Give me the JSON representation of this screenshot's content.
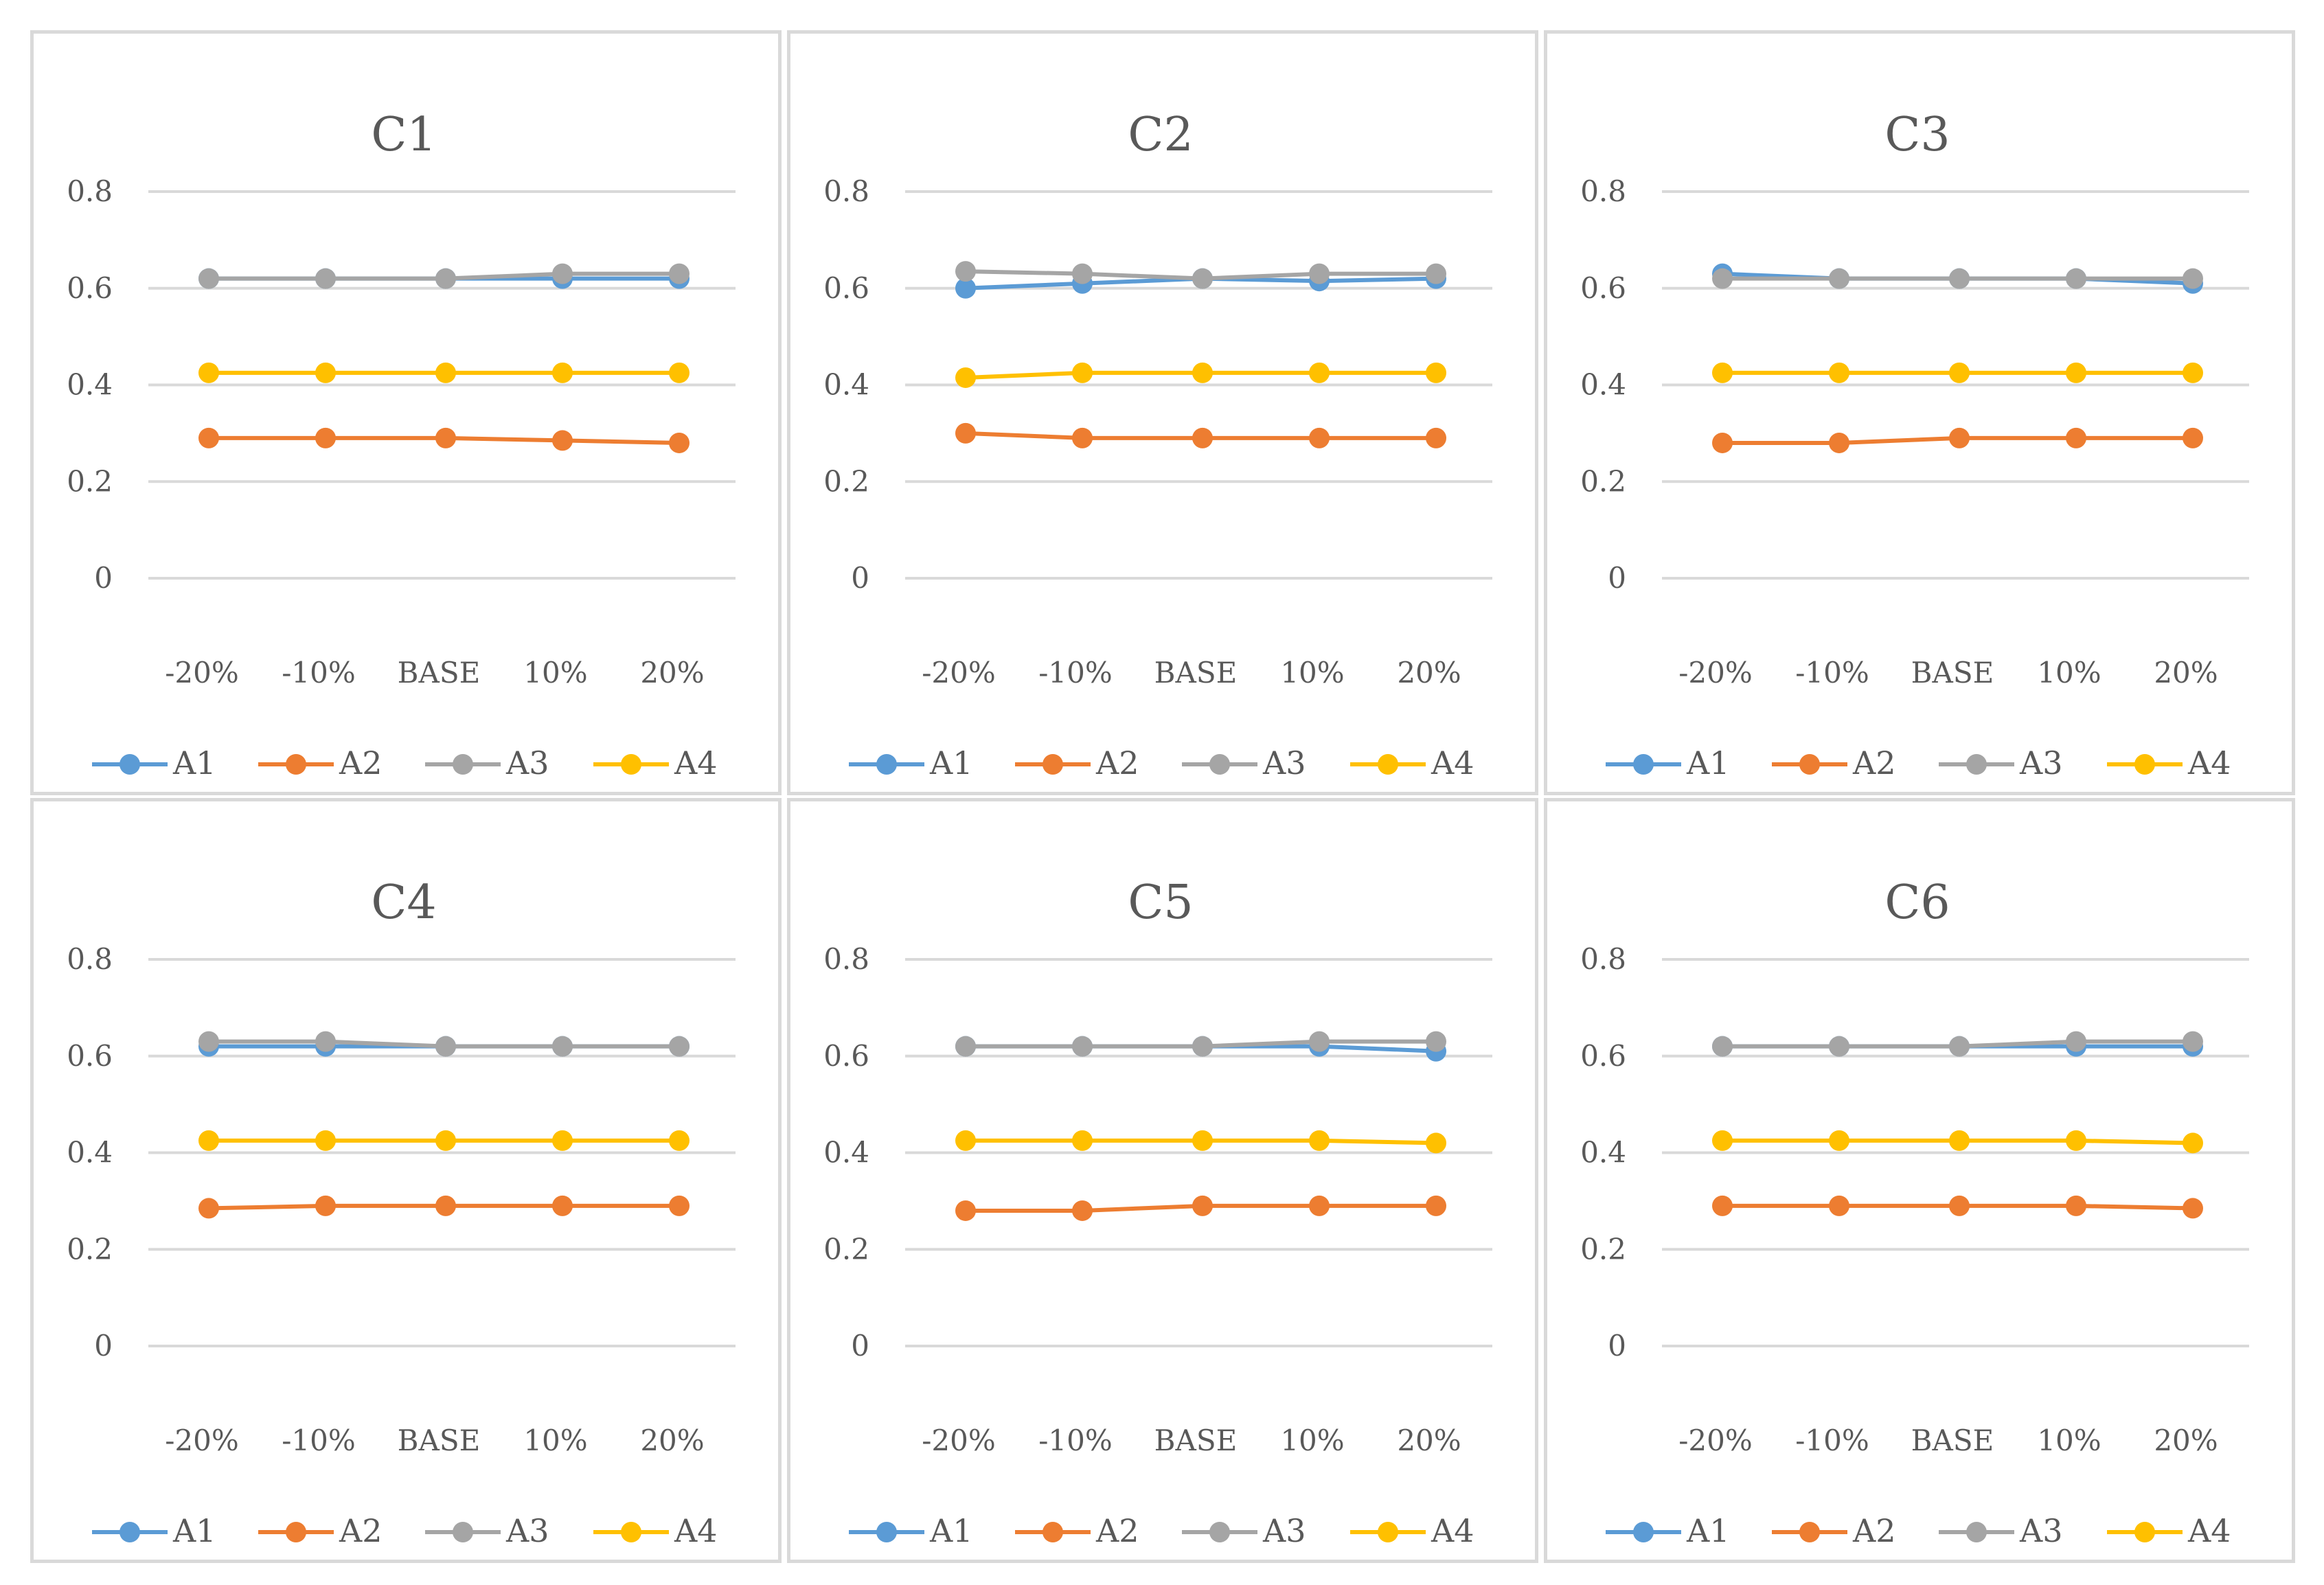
{
  "colors": {
    "A1": "#5b9bd5",
    "A2": "#ed7d31",
    "A3": "#a5a5a5",
    "A4": "#ffc000"
  },
  "chart_data": [
    {
      "type": "line",
      "title": "C1",
      "categories": [
        "-20%",
        "-10%",
        "BASE",
        "10%",
        "20%"
      ],
      "ylim": [
        0,
        0.8
      ],
      "yticks": [
        "0",
        "0.2",
        "0.4",
        "0.6",
        "0.8"
      ],
      "legend_position": "bottom",
      "series": [
        {
          "name": "A1",
          "values": [
            0.62,
            0.62,
            0.62,
            0.62,
            0.62
          ]
        },
        {
          "name": "A2",
          "values": [
            0.29,
            0.29,
            0.29,
            0.285,
            0.28
          ]
        },
        {
          "name": "A3",
          "values": [
            0.62,
            0.62,
            0.62,
            0.63,
            0.63
          ]
        },
        {
          "name": "A4",
          "values": [
            0.425,
            0.425,
            0.425,
            0.425,
            0.425
          ]
        }
      ]
    },
    {
      "type": "line",
      "title": "C2",
      "categories": [
        "-20%",
        "-10%",
        "BASE",
        "10%",
        "20%"
      ],
      "ylim": [
        0,
        0.8
      ],
      "yticks": [
        "0",
        "0.2",
        "0.4",
        "0.6",
        "0.8"
      ],
      "legend_position": "bottom",
      "series": [
        {
          "name": "A1",
          "values": [
            0.6,
            0.61,
            0.62,
            0.615,
            0.62
          ]
        },
        {
          "name": "A2",
          "values": [
            0.3,
            0.29,
            0.29,
            0.29,
            0.29
          ]
        },
        {
          "name": "A3",
          "values": [
            0.635,
            0.63,
            0.62,
            0.63,
            0.63
          ]
        },
        {
          "name": "A4",
          "values": [
            0.415,
            0.425,
            0.425,
            0.425,
            0.425
          ]
        }
      ]
    },
    {
      "type": "line",
      "title": "C3",
      "categories": [
        "-20%",
        "-10%",
        "BASE",
        "10%",
        "20%"
      ],
      "ylim": [
        0,
        0.8
      ],
      "yticks": [
        "0",
        "0.2",
        "0.4",
        "0.6",
        "0.8"
      ],
      "legend_position": "bottom",
      "series": [
        {
          "name": "A1",
          "values": [
            0.63,
            0.62,
            0.62,
            0.62,
            0.61
          ]
        },
        {
          "name": "A2",
          "values": [
            0.28,
            0.28,
            0.29,
            0.29,
            0.29
          ]
        },
        {
          "name": "A3",
          "values": [
            0.62,
            0.62,
            0.62,
            0.62,
            0.62
          ]
        },
        {
          "name": "A4",
          "values": [
            0.425,
            0.425,
            0.425,
            0.425,
            0.425
          ]
        }
      ]
    },
    {
      "type": "line",
      "title": "C4",
      "categories": [
        "-20%",
        "-10%",
        "BASE",
        "10%",
        "20%"
      ],
      "ylim": [
        0,
        0.8
      ],
      "yticks": [
        "0",
        "0.2",
        "0.4",
        "0.6",
        "0.8"
      ],
      "legend_position": "bottom",
      "series": [
        {
          "name": "A1",
          "values": [
            0.62,
            0.62,
            0.62,
            0.62,
            0.62
          ]
        },
        {
          "name": "A2",
          "values": [
            0.285,
            0.29,
            0.29,
            0.29,
            0.29
          ]
        },
        {
          "name": "A3",
          "values": [
            0.63,
            0.63,
            0.62,
            0.62,
            0.62
          ]
        },
        {
          "name": "A4",
          "values": [
            0.425,
            0.425,
            0.425,
            0.425,
            0.425
          ]
        }
      ]
    },
    {
      "type": "line",
      "title": "C5",
      "categories": [
        "-20%",
        "-10%",
        "BASE",
        "10%",
        "20%"
      ],
      "ylim": [
        0,
        0.8
      ],
      "yticks": [
        "0",
        "0.2",
        "0.4",
        "0.6",
        "0.8"
      ],
      "legend_position": "bottom",
      "series": [
        {
          "name": "A1",
          "values": [
            0.62,
            0.62,
            0.62,
            0.62,
            0.61
          ]
        },
        {
          "name": "A2",
          "values": [
            0.28,
            0.28,
            0.29,
            0.29,
            0.29
          ]
        },
        {
          "name": "A3",
          "values": [
            0.62,
            0.62,
            0.62,
            0.63,
            0.63
          ]
        },
        {
          "name": "A4",
          "values": [
            0.425,
            0.425,
            0.425,
            0.425,
            0.42
          ]
        }
      ]
    },
    {
      "type": "line",
      "title": "C6",
      "categories": [
        "-20%",
        "-10%",
        "BASE",
        "10%",
        "20%"
      ],
      "ylim": [
        0,
        0.8
      ],
      "yticks": [
        "0",
        "0.2",
        "0.4",
        "0.6",
        "0.8"
      ],
      "legend_position": "bottom",
      "series": [
        {
          "name": "A1",
          "values": [
            0.62,
            0.62,
            0.62,
            0.62,
            0.62
          ]
        },
        {
          "name": "A2",
          "values": [
            0.29,
            0.29,
            0.29,
            0.29,
            0.285
          ]
        },
        {
          "name": "A3",
          "values": [
            0.62,
            0.62,
            0.62,
            0.63,
            0.63
          ]
        },
        {
          "name": "A4",
          "values": [
            0.425,
            0.425,
            0.425,
            0.425,
            0.42
          ]
        }
      ]
    }
  ]
}
